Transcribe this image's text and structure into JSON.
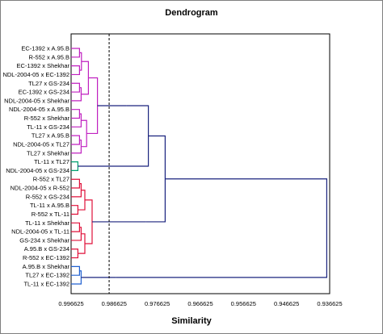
{
  "chart_data": {
    "type": "dendrogram",
    "title": "Dendrogram",
    "xlabel": "Similarity",
    "ylabel": "",
    "xlim": [
      0.996625,
      0.936625
    ],
    "xticks": [
      "0.996625",
      "0.986625",
      "0.976625",
      "0.966625",
      "0.956625",
      "0.946625",
      "0.936625"
    ],
    "cutoff": 0.9878,
    "leaves": [
      "EC-1392 x A.95.B",
      "R-552 x A.95.B",
      "EC-1392 x Shekhar",
      "NDL-2004-05 x EC-1392",
      "TL27 x GS-234",
      "EC-1392 x GS-234",
      "NDL-2004-05 x Shekhar",
      "NDL-2004-05 x A.95.B",
      "R-552 x Shekhar",
      "TL-11 x GS-234",
      "TL27 x A.95.B",
      "NDL-2004-05 x TL27",
      "TL27 x Shekhar",
      "TL-11 x TL27",
      "NDL-2004-05 x GS-234",
      "R-552 x TL27",
      "NDL-2004-05 x R-552",
      "R-552 x GS-234",
      "TL-11 x A.95.B",
      "R-552 x TL-11",
      "TL-11 x Shekhar",
      "NDL-2004-05 x TL-11",
      "GS-234 x Shekhar",
      "A.95.B x GS-234",
      "R-552 x EC-1392",
      "A.95.B x Shekhar",
      "TL27 x EC-1392",
      "TL-11 x EC-1392"
    ],
    "clusters": [
      {
        "color": "#C020C0",
        "leaves": [
          0,
          12
        ]
      },
      {
        "color": "#00A070",
        "leaves": [
          13,
          14
        ]
      },
      {
        "color": "#E0103A",
        "leaves": [
          15,
          24
        ]
      },
      {
        "color": "#2060D0",
        "leaves": [
          25,
          27
        ]
      }
    ],
    "cluster_merges": [
      {
        "members": [
          0
        ],
        "height": 0.9838
      },
      {
        "members": [
          0,
          1
        ],
        "height": 0.9787
      },
      {
        "members": [
          2
        ],
        "height": 0.9793
      },
      {
        "members": [
          3
        ],
        "height": 0.9862
      },
      {
        "members": [
          0,
          1,
          2
        ],
        "height": 0.9748
      },
      {
        "members": [
          0,
          1,
          2,
          3
        ],
        "height": 0.9373
      }
    ],
    "linkage_color": "#1A237E",
    "grid": false,
    "legend": "none"
  }
}
